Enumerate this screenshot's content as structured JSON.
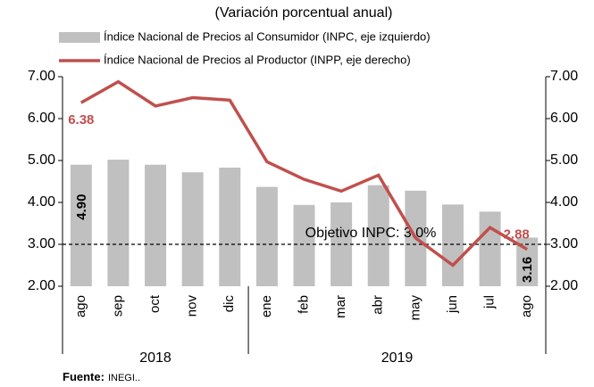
{
  "chart_data": {
    "type": "bar_line",
    "title": "(Variación porcentual anual)",
    "categories": [
      "ago",
      "sep",
      "oct",
      "nov",
      "dic",
      "ene",
      "feb",
      "mar",
      "abr",
      "may",
      "jun",
      "jul",
      "ago"
    ],
    "groups": [
      {
        "label": "2018",
        "start": 0,
        "end": 4
      },
      {
        "label": "2019",
        "start": 5,
        "end": 12
      }
    ],
    "series": [
      {
        "name": "Índice Nacional de Precios al Consumidor (INPC, eje izquierdo)",
        "type": "bar",
        "color": "#c0c0c0",
        "values": [
          4.9,
          5.02,
          4.9,
          4.72,
          4.83,
          4.37,
          3.94,
          4.0,
          4.41,
          4.28,
          3.95,
          3.78,
          3.16
        ],
        "value_labels": [
          "4.90",
          null,
          null,
          null,
          null,
          null,
          null,
          null,
          null,
          null,
          null,
          null,
          "3.16"
        ]
      },
      {
        "name": "Índice Nacional de Precios al Productor (INPP, eje derecho)",
        "type": "line",
        "axis": "y2",
        "color": "#c0504d",
        "values": [
          6.38,
          6.88,
          6.3,
          6.5,
          6.44,
          4.97,
          4.55,
          4.27,
          4.65,
          3.15,
          2.5,
          3.4,
          2.88
        ],
        "value_labels": [
          "6.38",
          null,
          null,
          null,
          null,
          null,
          null,
          null,
          null,
          null,
          null,
          null,
          "2.88"
        ]
      }
    ],
    "target": {
      "value": 3.0,
      "label": "Objetivo INPC: 3.0%"
    },
    "ylim": [
      2,
      7
    ],
    "yticks": [
      {
        "value": 2,
        "label": "2.00"
      },
      {
        "value": 3,
        "label": "3.00"
      },
      {
        "value": 4,
        "label": "4.00"
      },
      {
        "value": 5,
        "label": "5.00"
      },
      {
        "value": 6,
        "label": "6.00"
      },
      {
        "value": 7,
        "label": "7.00"
      }
    ],
    "y2lim": [
      2,
      7
    ],
    "y2ticks": [
      {
        "value": 2,
        "label": "2.00"
      },
      {
        "value": 3,
        "label": "3.00"
      },
      {
        "value": 4,
        "label": "4.00"
      },
      {
        "value": 5,
        "label": "5.00"
      },
      {
        "value": 6,
        "label": "6.00"
      },
      {
        "value": 7,
        "label": "7.00"
      }
    ],
    "source": {
      "label": "Fuente:",
      "text": "INEGI.."
    }
  }
}
